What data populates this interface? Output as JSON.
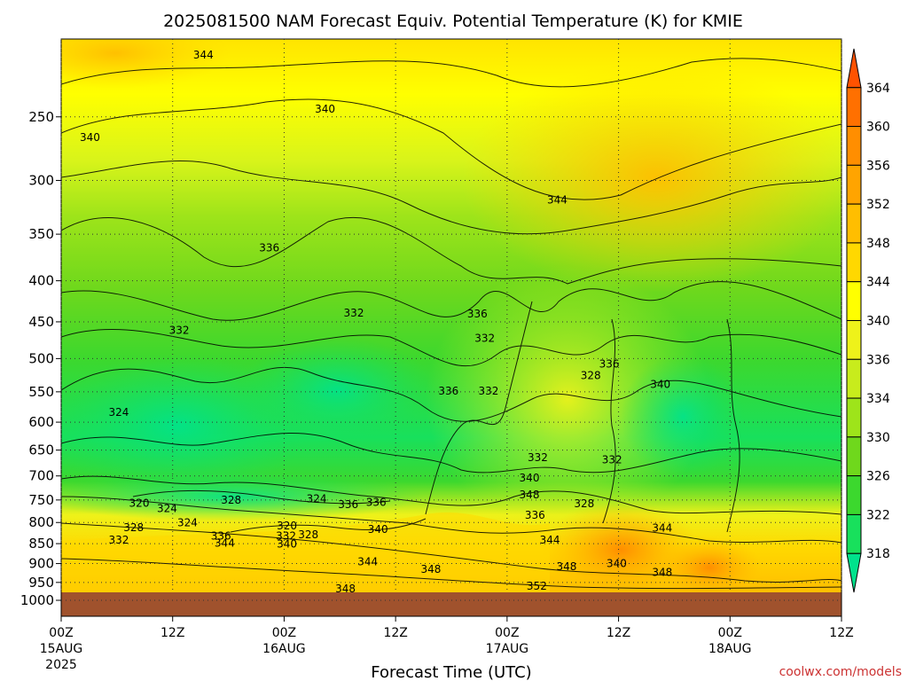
{
  "chart_data": {
    "type": "heatmap",
    "title": "2025081500 NAM Forecast Equiv. Potential Temperature (K) for KMIE",
    "xlabel": "Forecast Time (UTC)",
    "ylabel": "",
    "credit": "coolwx.com/models",
    "y_axis": {
      "ticks": [
        250,
        300,
        350,
        400,
        450,
        500,
        550,
        600,
        650,
        700,
        750,
        800,
        850,
        900,
        950,
        1000
      ],
      "range": [
        200,
        1000
      ],
      "scale": "log",
      "inverted": true
    },
    "x_axis": {
      "range_hours": [
        0,
        84
      ],
      "ticks": [
        {
          "hour": 0,
          "label": "00Z",
          "date": "15AUG",
          "year": "2025"
        },
        {
          "hour": 12,
          "label": "12Z",
          "date": "",
          "year": ""
        },
        {
          "hour": 24,
          "label": "00Z",
          "date": "16AUG",
          "year": ""
        },
        {
          "hour": 36,
          "label": "12Z",
          "date": "",
          "year": ""
        },
        {
          "hour": 48,
          "label": "00Z",
          "date": "17AUG",
          "year": ""
        },
        {
          "hour": 60,
          "label": "12Z",
          "date": "",
          "year": ""
        },
        {
          "hour": 72,
          "label": "00Z",
          "date": "18AUG",
          "year": ""
        },
        {
          "hour": 84,
          "label": "12Z",
          "date": "",
          "year": ""
        }
      ]
    },
    "colorbar": {
      "labels": [
        318,
        322,
        326,
        330,
        334,
        336,
        340,
        344,
        348,
        352,
        356,
        360,
        364
      ],
      "colors": [
        "#00e28c",
        "#18e05c",
        "#3cd82e",
        "#6fd81c",
        "#9ee41a",
        "#c8ec1c",
        "#eef21a",
        "#ffff00",
        "#ffd800",
        "#ffbe00",
        "#ffa400",
        "#ff8e00",
        "#ff7000",
        "#ff5200"
      ]
    },
    "contour_labels": [
      {
        "text": "344",
        "hour": 15.3,
        "p": 210
      },
      {
        "text": "340",
        "hour": 3.1,
        "p": 266
      },
      {
        "text": "340",
        "hour": 28.4,
        "p": 245
      },
      {
        "text": "344",
        "hour": 53.4,
        "p": 318
      },
      {
        "text": "336",
        "hour": 22.4,
        "p": 365
      },
      {
        "text": "332",
        "hour": 12.7,
        "p": 462
      },
      {
        "text": "332",
        "hour": 31.5,
        "p": 440
      },
      {
        "text": "336",
        "hour": 44.8,
        "p": 441
      },
      {
        "text": "332",
        "hour": 45.6,
        "p": 473
      },
      {
        "text": "336",
        "hour": 41.7,
        "p": 550
      },
      {
        "text": "332",
        "hour": 46.0,
        "p": 550
      },
      {
        "text": "336",
        "hour": 59.0,
        "p": 509
      },
      {
        "text": "328",
        "hour": 57.0,
        "p": 526
      },
      {
        "text": "340",
        "hour": 64.5,
        "p": 540
      },
      {
        "text": "324",
        "hour": 6.2,
        "p": 585
      },
      {
        "text": "332",
        "hour": 51.3,
        "p": 666
      },
      {
        "text": "332",
        "hour": 59.3,
        "p": 670
      },
      {
        "text": "340",
        "hour": 50.4,
        "p": 706
      },
      {
        "text": "348",
        "hour": 50.4,
        "p": 741
      },
      {
        "text": "320",
        "hour": 8.4,
        "p": 759
      },
      {
        "text": "324",
        "hour": 11.4,
        "p": 771
      },
      {
        "text": "328",
        "hour": 18.3,
        "p": 752
      },
      {
        "text": "324",
        "hour": 27.5,
        "p": 749
      },
      {
        "text": "336",
        "hour": 30.9,
        "p": 762
      },
      {
        "text": "336",
        "hour": 33.9,
        "p": 757
      },
      {
        "text": "328",
        "hour": 56.3,
        "p": 760
      },
      {
        "text": "336",
        "hour": 51.0,
        "p": 785
      },
      {
        "text": "324",
        "hour": 13.6,
        "p": 803
      },
      {
        "text": "328",
        "hour": 7.8,
        "p": 814
      },
      {
        "text": "320",
        "hour": 24.3,
        "p": 810
      },
      {
        "text": "332",
        "hour": 6.2,
        "p": 843
      },
      {
        "text": "336",
        "hour": 17.2,
        "p": 834
      },
      {
        "text": "344",
        "hour": 17.6,
        "p": 851
      },
      {
        "text": "332",
        "hour": 24.2,
        "p": 834
      },
      {
        "text": "340",
        "hour": 24.3,
        "p": 853
      },
      {
        "text": "328",
        "hour": 26.6,
        "p": 831
      },
      {
        "text": "340",
        "hour": 34.1,
        "p": 818
      },
      {
        "text": "344",
        "hour": 33.0,
        "p": 898
      },
      {
        "text": "344",
        "hour": 52.6,
        "p": 843
      },
      {
        "text": "344",
        "hour": 64.7,
        "p": 815
      },
      {
        "text": "348",
        "hour": 39.8,
        "p": 917
      },
      {
        "text": "348",
        "hour": 54.4,
        "p": 910
      },
      {
        "text": "340",
        "hour": 59.8,
        "p": 902
      },
      {
        "text": "348",
        "hour": 64.7,
        "p": 925
      },
      {
        "text": "352",
        "hour": 51.2,
        "p": 962
      },
      {
        "text": "348",
        "hour": 30.6,
        "p": 970
      }
    ]
  }
}
